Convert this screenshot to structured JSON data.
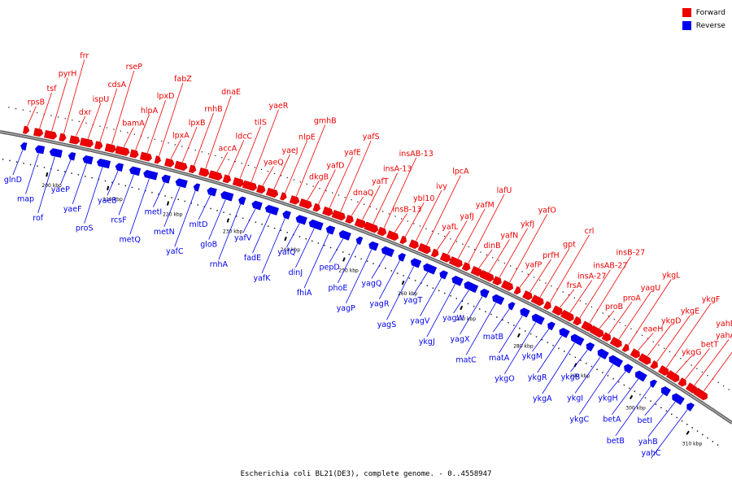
{
  "colors": {
    "forward": "#ee0000",
    "reverse": "#0000ee",
    "backbone": "#808080",
    "text": "#000000"
  },
  "legend": {
    "forward_label": "Forward",
    "reverse_label": "Reverse"
  },
  "caption": "Escherichia coli BL21(DE3), complete genome. - 0..4558947",
  "ticks": [
    "200 kbp",
    "210 kbp",
    "220 kbp",
    "230 kbp",
    "240 kbp",
    "250 kbp",
    "260 kbp",
    "270 kbp",
    "280 kbp",
    "290 kbp",
    "300 kbp",
    "310 kbp"
  ],
  "forward_genes": [
    "rpsB",
    "tsf",
    "pyrH",
    "frr",
    "dxr",
    "ispU",
    "cdsA",
    "rseP",
    "bamA",
    "hlpA",
    "lpxD",
    "fabZ",
    "lpxA",
    "lpxB",
    "rnhB",
    "dnaE",
    "accA",
    "ldcC",
    "tilS",
    "yaeR",
    "yaeQ",
    "yaeJ",
    "nlpE",
    "gmhB",
    "dkgB",
    "yafD",
    "yafE",
    "yafS",
    "dnaQ",
    "yafT",
    "insA-13",
    "insAB-13",
    "insB-13",
    "ybl10",
    "ivy",
    "lpcA",
    "yafL",
    "yafJ",
    "yafM",
    "lafU",
    "dinB",
    "yafN",
    "ykfJ",
    "yafO",
    "yafP",
    "prfH",
    "gpt",
    "crl",
    "frsA",
    "insA-27",
    "insAB-27",
    "insB-27",
    "proB",
    "proA",
    "yagU",
    "ykgL",
    "eaeH",
    "ykgD",
    "ykgE",
    "ykgF",
    "ykgG",
    "betT",
    "yahA",
    "yahE"
  ],
  "reverse_genes": [
    "glnD",
    "map",
    "rof",
    "yaeP",
    "yaeF",
    "proS",
    "yaeB",
    "rcsF",
    "metQ",
    "metI",
    "metN",
    "yafC",
    "mltD",
    "gloB",
    "rnhA",
    "yafV",
    "fadE",
    "yafK",
    "yafQ",
    "dinJ",
    "fhiA",
    "pepD",
    "phoE",
    "yagP",
    "yagQ",
    "yagR",
    "yagS",
    "yagT",
    "yagV",
    "ykgJ",
    "yagW",
    "yagX",
    "matC",
    "matB",
    "matA",
    "ykgO",
    "ykgM",
    "ykgR",
    "ykgA",
    "ykgB",
    "ykgI",
    "ykgC",
    "ykgH",
    "betA",
    "betB",
    "betI",
    "yahB",
    "yahC"
  ]
}
